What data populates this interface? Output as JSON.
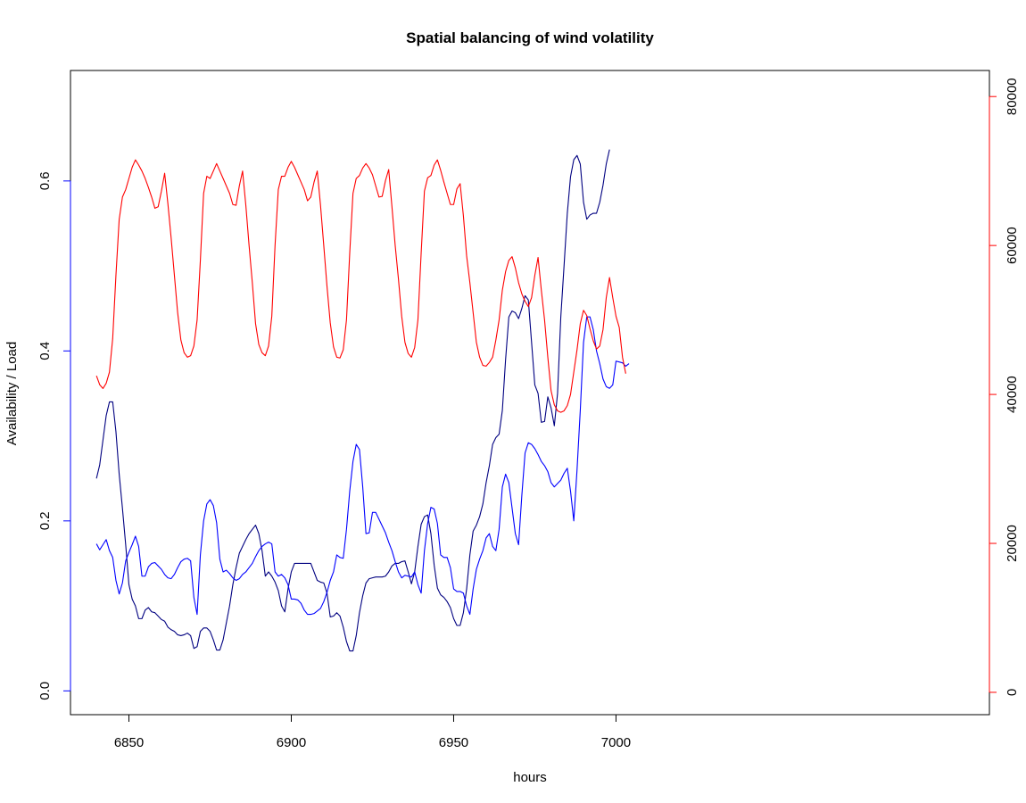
{
  "chart_data": {
    "type": "line",
    "title": "Spatial balancing of wind volatility",
    "xlabel": "hours",
    "ylabel": "Availability / Load",
    "xlim": [
      6832,
      7115
    ],
    "ylim": [
      -0.028,
      0.73
    ],
    "y2lim": [
      -3000,
      83500
    ],
    "x_ticks": [
      6850,
      6900,
      6950,
      7000
    ],
    "y_ticks": [
      0.0,
      0.2,
      0.4,
      0.6
    ],
    "y_tick_labels": [
      "0.0",
      "0.2",
      "0.4",
      "0.6"
    ],
    "y2_ticks": [
      0,
      20000,
      40000,
      60000,
      80000
    ],
    "y2_tick_labels": [
      "0",
      "20000",
      "40000",
      "60000",
      "80000"
    ],
    "x_start": 6840,
    "x_step": 1,
    "grid": false,
    "colors": {
      "navy": "#000080",
      "blue": "#0000ff",
      "red": "#ff0000",
      "axis": "#000000"
    },
    "series": [
      {
        "color": "#000080",
        "axis": "left",
        "values": [
          0.25,
          0.266,
          0.295,
          0.324,
          0.34,
          0.34,
          0.305,
          0.255,
          0.215,
          0.172,
          0.125,
          0.108,
          0.1,
          0.085,
          0.085,
          0.095,
          0.098,
          0.093,
          0.092,
          0.088,
          0.084,
          0.082,
          0.075,
          0.072,
          0.07,
          0.066,
          0.065,
          0.066,
          0.068,
          0.065,
          0.05,
          0.052,
          0.07,
          0.074,
          0.074,
          0.07,
          0.06,
          0.048,
          0.048,
          0.06,
          0.08,
          0.1,
          0.125,
          0.145,
          0.162,
          0.17,
          0.178,
          0.185,
          0.19,
          0.195,
          0.185,
          0.165,
          0.135,
          0.14,
          0.135,
          0.128,
          0.118,
          0.1,
          0.093,
          0.12,
          0.14,
          0.15,
          0.15,
          0.15,
          0.15,
          0.15,
          0.15,
          0.14,
          0.13,
          0.128,
          0.127,
          0.115,
          0.087,
          0.088,
          0.092,
          0.088,
          0.075,
          0.058,
          0.047,
          0.047,
          0.065,
          0.092,
          0.112,
          0.127,
          0.132,
          0.133,
          0.134,
          0.134,
          0.134,
          0.135,
          0.14,
          0.147,
          0.15,
          0.15,
          0.152,
          0.153,
          0.14,
          0.126,
          0.14,
          0.17,
          0.196,
          0.205,
          0.207,
          0.185,
          0.148,
          0.121,
          0.113,
          0.11,
          0.105,
          0.098,
          0.085,
          0.077,
          0.077,
          0.092,
          0.12,
          0.16,
          0.188,
          0.195,
          0.205,
          0.22,
          0.245,
          0.265,
          0.29,
          0.298,
          0.302,
          0.33,
          0.39,
          0.44,
          0.447,
          0.445,
          0.438,
          0.45,
          0.465,
          0.46,
          0.41,
          0.36,
          0.35,
          0.316,
          0.317,
          0.346,
          0.333,
          0.312,
          0.35,
          0.44,
          0.5,
          0.562,
          0.605,
          0.625,
          0.63,
          0.62,
          0.575,
          0.555,
          0.56,
          0.562,
          0.562,
          0.575,
          0.595,
          0.62,
          0.637
        ]
      },
      {
        "color": "#0000ff",
        "axis": "left",
        "values": [
          0.173,
          0.166,
          0.172,
          0.178,
          0.165,
          0.157,
          0.13,
          0.114,
          0.127,
          0.153,
          0.163,
          0.172,
          0.182,
          0.17,
          0.135,
          0.135,
          0.146,
          0.15,
          0.151,
          0.147,
          0.143,
          0.137,
          0.133,
          0.132,
          0.137,
          0.145,
          0.152,
          0.155,
          0.156,
          0.153,
          0.11,
          0.09,
          0.16,
          0.2,
          0.22,
          0.225,
          0.218,
          0.198,
          0.155,
          0.14,
          0.142,
          0.138,
          0.133,
          0.13,
          0.132,
          0.137,
          0.14,
          0.145,
          0.15,
          0.158,
          0.165,
          0.17,
          0.173,
          0.175,
          0.173,
          0.14,
          0.135,
          0.137,
          0.133,
          0.125,
          0.108,
          0.108,
          0.107,
          0.103,
          0.095,
          0.09,
          0.09,
          0.091,
          0.094,
          0.097,
          0.105,
          0.116,
          0.13,
          0.14,
          0.16,
          0.157,
          0.156,
          0.19,
          0.235,
          0.27,
          0.29,
          0.284,
          0.24,
          0.185,
          0.186,
          0.21,
          0.21,
          0.202,
          0.194,
          0.186,
          0.175,
          0.165,
          0.152,
          0.14,
          0.133,
          0.136,
          0.135,
          0.134,
          0.14,
          0.125,
          0.115,
          0.165,
          0.197,
          0.216,
          0.214,
          0.197,
          0.16,
          0.157,
          0.157,
          0.145,
          0.12,
          0.117,
          0.117,
          0.115,
          0.1,
          0.09,
          0.12,
          0.143,
          0.155,
          0.165,
          0.18,
          0.185,
          0.17,
          0.165,
          0.19,
          0.24,
          0.255,
          0.245,
          0.215,
          0.185,
          0.172,
          0.23,
          0.28,
          0.292,
          0.29,
          0.285,
          0.278,
          0.27,
          0.265,
          0.258,
          0.245,
          0.24,
          0.244,
          0.248,
          0.256,
          0.262,
          0.235,
          0.2,
          0.26,
          0.33,
          0.41,
          0.44,
          0.44,
          0.425,
          0.4,
          0.385,
          0.367,
          0.358,
          0.356,
          0.36,
          0.388,
          0.387,
          0.386,
          0.382,
          0.385
        ]
      },
      {
        "color": "#ff0000",
        "axis": "right",
        "values": [
          42500,
          41300,
          40800,
          41500,
          43000,
          47500,
          56000,
          63500,
          66500,
          67500,
          69000,
          70500,
          71500,
          70800,
          70000,
          69000,
          67800,
          66500,
          65000,
          65200,
          67300,
          69700,
          65600,
          61000,
          56000,
          51000,
          47300,
          45600,
          45000,
          45200,
          46500,
          50000,
          58000,
          67000,
          69300,
          69000,
          70000,
          71000,
          70000,
          69000,
          68000,
          67000,
          65500,
          65400,
          68000,
          70000,
          65400,
          60000,
          55000,
          49500,
          46700,
          45600,
          45200,
          46500,
          50500,
          60000,
          67500,
          69300,
          69300,
          70500,
          71300,
          70500,
          69500,
          68500,
          67500,
          66000,
          66500,
          68500,
          70000,
          65400,
          60000,
          54500,
          49600,
          46400,
          45000,
          44900,
          46000,
          50000,
          59000,
          67000,
          69000,
          69400,
          70400,
          71000,
          70400,
          69500,
          68000,
          66500,
          66600,
          68700,
          70200,
          65200,
          60000,
          55500,
          50500,
          47000,
          45500,
          45000,
          46300,
          50000,
          59000,
          67300,
          69100,
          69400,
          70800,
          71500,
          70100,
          68500,
          67000,
          65500,
          65500,
          67600,
          68300,
          64000,
          58600,
          55000,
          51000,
          47000,
          45000,
          43900,
          43800,
          44300,
          45000,
          47300,
          50000,
          54000,
          56500,
          58000,
          58500,
          57000,
          55000,
          53500,
          52500,
          51800,
          53000,
          56000,
          58400,
          54000,
          50000,
          45000,
          40500,
          38600,
          37800,
          37600,
          37800,
          38500,
          40000,
          43000,
          46000,
          49500,
          51300,
          50600,
          48800,
          47200,
          46100,
          46500,
          48700,
          53000,
          55700,
          53000,
          50500,
          49000,
          45000,
          42800
        ]
      }
    ]
  }
}
